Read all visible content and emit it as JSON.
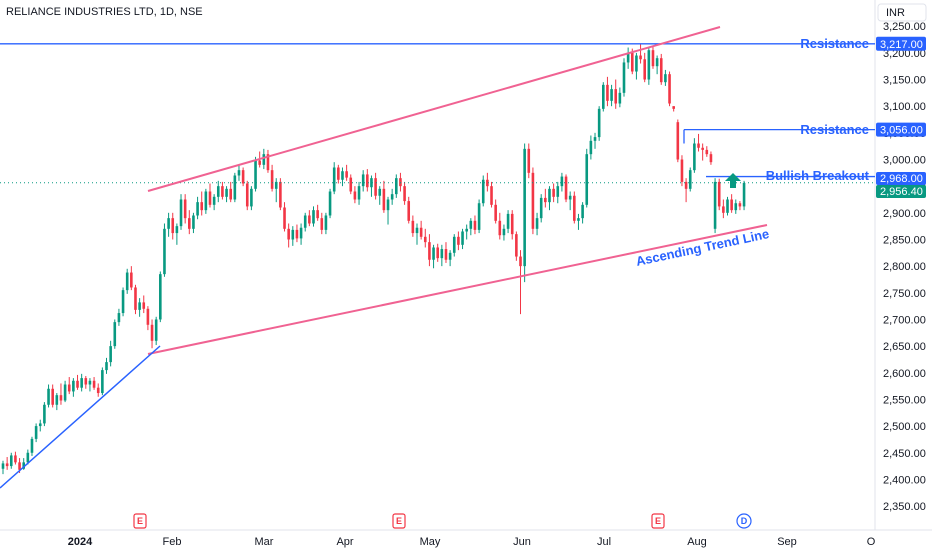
{
  "header": {
    "symbol_title": "RELIANCE INDUSTRIES LTD, 1D, NSE",
    "currency": "INR"
  },
  "colors": {
    "up": "#089981",
    "down": "#f23645",
    "channel": "#f06292",
    "blue": "#2962ff",
    "grid_text": "#131722"
  },
  "chart_data": {
    "type": "candlestick",
    "title": "RELIANCE INDUSTRIES LTD, 1D, NSE",
    "currency": "INR",
    "y_ticks": [
      2350,
      2400,
      2450,
      2500,
      2550,
      2600,
      2650,
      2700,
      2750,
      2800,
      2850,
      2900,
      2950,
      3000,
      3050,
      3100,
      3150,
      3200,
      3250
    ],
    "ylim": [
      2330,
      3270
    ],
    "x_labels": [
      "2024",
      "Feb",
      "Mar",
      "Apr",
      "May",
      "Jun",
      "Jul",
      "Aug",
      "Sep",
      "O"
    ],
    "candles": [
      [
        2420,
        2435,
        2410,
        2430
      ],
      [
        2430,
        2442,
        2418,
        2425
      ],
      [
        2425,
        2450,
        2420,
        2445
      ],
      [
        2445,
        2452,
        2428,
        2432
      ],
      [
        2432,
        2440,
        2412,
        2418
      ],
      [
        2420,
        2440,
        2418,
        2432
      ],
      [
        2432,
        2456,
        2428,
        2450
      ],
      [
        2450,
        2480,
        2444,
        2476
      ],
      [
        2476,
        2505,
        2470,
        2500
      ],
      [
        2500,
        2512,
        2490,
        2505
      ],
      [
        2505,
        2545,
        2500,
        2540
      ],
      [
        2540,
        2578,
        2535,
        2570
      ],
      [
        2570,
        2578,
        2535,
        2540
      ],
      [
        2540,
        2562,
        2530,
        2558
      ],
      [
        2558,
        2580,
        2540,
        2548
      ],
      [
        2548,
        2585,
        2545,
        2578
      ],
      [
        2578,
        2592,
        2560,
        2565
      ],
      [
        2565,
        2590,
        2555,
        2585
      ],
      [
        2585,
        2596,
        2568,
        2572
      ],
      [
        2572,
        2598,
        2565,
        2590
      ],
      [
        2590,
        2594,
        2570,
        2578
      ],
      [
        2578,
        2590,
        2565,
        2585
      ],
      [
        2585,
        2592,
        2568,
        2572
      ],
      [
        2572,
        2580,
        2555,
        2562
      ],
      [
        2562,
        2610,
        2558,
        2605
      ],
      [
        2605,
        2628,
        2598,
        2620
      ],
      [
        2620,
        2660,
        2612,
        2650
      ],
      [
        2650,
        2700,
        2645,
        2695
      ],
      [
        2695,
        2720,
        2688,
        2712
      ],
      [
        2712,
        2760,
        2706,
        2755
      ],
      [
        2755,
        2795,
        2748,
        2788
      ],
      [
        2788,
        2800,
        2755,
        2760
      ],
      [
        2760,
        2765,
        2710,
        2718
      ],
      [
        2718,
        2740,
        2705,
        2732
      ],
      [
        2732,
        2745,
        2712,
        2720
      ],
      [
        2720,
        2725,
        2680,
        2690
      ],
      [
        2690,
        2700,
        2646,
        2660
      ],
      [
        2660,
        2705,
        2652,
        2700
      ],
      [
        2700,
        2790,
        2695,
        2785
      ],
      [
        2785,
        2880,
        2780,
        2870
      ],
      [
        2870,
        2900,
        2855,
        2890
      ],
      [
        2890,
        2900,
        2850,
        2862
      ],
      [
        2862,
        2880,
        2840,
        2875
      ],
      [
        2875,
        2935,
        2868,
        2925
      ],
      [
        2925,
        2935,
        2880,
        2890
      ],
      [
        2890,
        2905,
        2860,
        2870
      ],
      [
        2870,
        2900,
        2862,
        2895
      ],
      [
        2895,
        2930,
        2888,
        2920
      ],
      [
        2920,
        2940,
        2895,
        2905
      ],
      [
        2905,
        2945,
        2898,
        2940
      ],
      [
        2940,
        2955,
        2910,
        2915
      ],
      [
        2915,
        2935,
        2905,
        2930
      ],
      [
        2930,
        2960,
        2920,
        2950
      ],
      [
        2950,
        2958,
        2925,
        2930
      ],
      [
        2930,
        2950,
        2920,
        2945
      ],
      [
        2945,
        2958,
        2920,
        2925
      ],
      [
        2925,
        2975,
        2920,
        2970
      ],
      [
        2970,
        2990,
        2960,
        2980
      ],
      [
        2980,
        2985,
        2950,
        2955
      ],
      [
        2955,
        2960,
        2905,
        2912
      ],
      [
        2912,
        2950,
        2905,
        2945
      ],
      [
        2945,
        3005,
        2940,
        2998
      ],
      [
        2998,
        3015,
        2985,
        2990
      ],
      [
        2990,
        3020,
        2982,
        3010
      ],
      [
        3010,
        3018,
        2975,
        2980
      ],
      [
        2980,
        2990,
        2940,
        2945
      ],
      [
        2945,
        2965,
        2920,
        2958
      ],
      [
        2958,
        2965,
        2905,
        2910
      ],
      [
        2910,
        2920,
        2865,
        2870
      ],
      [
        2870,
        2880,
        2835,
        2850
      ],
      [
        2850,
        2875,
        2838,
        2868
      ],
      [
        2868,
        2878,
        2845,
        2852
      ],
      [
        2852,
        2880,
        2840,
        2872
      ],
      [
        2872,
        2900,
        2865,
        2895
      ],
      [
        2895,
        2905,
        2875,
        2880
      ],
      [
        2880,
        2912,
        2874,
        2905
      ],
      [
        2905,
        2915,
        2885,
        2890
      ],
      [
        2890,
        2900,
        2860,
        2868
      ],
      [
        2868,
        2900,
        2860,
        2895
      ],
      [
        2895,
        2945,
        2890,
        2940
      ],
      [
        2940,
        2995,
        2935,
        2985
      ],
      [
        2985,
        2990,
        2955,
        2962
      ],
      [
        2962,
        2985,
        2950,
        2978
      ],
      [
        2978,
        2990,
        2960,
        2966
      ],
      [
        2966,
        2972,
        2935,
        2940
      ],
      [
        2940,
        2950,
        2918,
        2925
      ],
      [
        2925,
        2958,
        2915,
        2950
      ],
      [
        2950,
        2980,
        2940,
        2972
      ],
      [
        2972,
        2982,
        2940,
        2948
      ],
      [
        2948,
        2970,
        2930,
        2965
      ],
      [
        2965,
        2975,
        2925,
        2932
      ],
      [
        2932,
        2950,
        2915,
        2945
      ],
      [
        2945,
        2960,
        2900,
        2905
      ],
      [
        2905,
        2930,
        2878,
        2925
      ],
      [
        2925,
        2945,
        2915,
        2935
      ],
      [
        2935,
        2972,
        2928,
        2965
      ],
      [
        2965,
        2975,
        2940,
        2950
      ],
      [
        2950,
        2958,
        2915,
        2922
      ],
      [
        2922,
        2930,
        2880,
        2885
      ],
      [
        2885,
        2895,
        2855,
        2862
      ],
      [
        2862,
        2880,
        2840,
        2872
      ],
      [
        2872,
        2885,
        2850,
        2855
      ],
      [
        2855,
        2870,
        2835,
        2845
      ],
      [
        2845,
        2860,
        2800,
        2812
      ],
      [
        2812,
        2840,
        2796,
        2835
      ],
      [
        2835,
        2842,
        2808,
        2815
      ],
      [
        2815,
        2840,
        2800,
        2832
      ],
      [
        2832,
        2845,
        2806,
        2812
      ],
      [
        2812,
        2830,
        2800,
        2825
      ],
      [
        2825,
        2860,
        2818,
        2855
      ],
      [
        2855,
        2865,
        2830,
        2840
      ],
      [
        2840,
        2870,
        2832,
        2865
      ],
      [
        2865,
        2878,
        2850,
        2870
      ],
      [
        2870,
        2890,
        2858,
        2885
      ],
      [
        2885,
        2895,
        2860,
        2868
      ],
      [
        2868,
        2925,
        2862,
        2918
      ],
      [
        2918,
        2970,
        2912,
        2962
      ],
      [
        2962,
        2975,
        2940,
        2950
      ],
      [
        2950,
        2958,
        2910,
        2915
      ],
      [
        2915,
        2925,
        2880,
        2885
      ],
      [
        2885,
        2900,
        2850,
        2858
      ],
      [
        2858,
        2878,
        2848,
        2870
      ],
      [
        2870,
        2905,
        2862,
        2898
      ],
      [
        2898,
        2905,
        2850,
        2860
      ],
      [
        2860,
        2865,
        2810,
        2818
      ],
      [
        2818,
        2830,
        2710,
        2800
      ],
      [
        2800,
        3030,
        2770,
        3020
      ],
      [
        3020,
        3030,
        2965,
        2975
      ],
      [
        2975,
        2985,
        2860,
        2870
      ],
      [
        2870,
        2900,
        2858,
        2890
      ],
      [
        2890,
        2935,
        2882,
        2928
      ],
      [
        2928,
        2945,
        2910,
        2920
      ],
      [
        2920,
        2950,
        2905,
        2945
      ],
      [
        2945,
        2955,
        2920,
        2930
      ],
      [
        2930,
        2958,
        2918,
        2950
      ],
      [
        2950,
        2975,
        2940,
        2968
      ],
      [
        2968,
        2972,
        2920,
        2925
      ],
      [
        2925,
        2940,
        2905,
        2932
      ],
      [
        2932,
        2940,
        2880,
        2885
      ],
      [
        2885,
        2898,
        2868,
        2890
      ],
      [
        2890,
        2920,
        2880,
        2915
      ],
      [
        2915,
        3020,
        2910,
        3010
      ],
      [
        3010,
        3045,
        3000,
        3035
      ],
      [
        3035,
        3050,
        3020,
        3042
      ],
      [
        3042,
        3100,
        3035,
        3095
      ],
      [
        3095,
        3145,
        3090,
        3140
      ],
      [
        3140,
        3155,
        3100,
        3110
      ],
      [
        3110,
        3140,
        3100,
        3132
      ],
      [
        3132,
        3150,
        3095,
        3105
      ],
      [
        3105,
        3135,
        3098,
        3125
      ],
      [
        3125,
        3190,
        3118,
        3182
      ],
      [
        3182,
        3210,
        3170,
        3200
      ],
      [
        3200,
        3208,
        3160,
        3165
      ],
      [
        3165,
        3200,
        3150,
        3195
      ],
      [
        3195,
        3217,
        3180,
        3188
      ],
      [
        3188,
        3200,
        3145,
        3150
      ],
      [
        3150,
        3210,
        3140,
        3205
      ],
      [
        3205,
        3212,
        3170,
        3175
      ],
      [
        3175,
        3195,
        3160,
        3190
      ],
      [
        3190,
        3198,
        3140,
        3145
      ],
      [
        3145,
        3168,
        3138,
        3160
      ],
      [
        3160,
        3165,
        3100,
        3105
      ],
      [
        3100,
        3100,
        3090,
        3095
      ],
      [
        3070,
        3075,
        2995,
        3000
      ],
      [
        3000,
        3008,
        2950,
        2958
      ],
      [
        2958,
        2965,
        2920,
        2945
      ],
      [
        2945,
        2985,
        2940,
        2980
      ],
      [
        2980,
        3040,
        2975,
        3030
      ],
      [
        3030,
        3048,
        3015,
        3022
      ],
      [
        3022,
        3030,
        2998,
        3018
      ],
      [
        3018,
        3025,
        3005,
        3010
      ],
      [
        3010,
        3015,
        2990,
        2995
      ],
      [
        2870,
        2965,
        2862,
        2958
      ],
      [
        2958,
        2964,
        2905,
        2912
      ],
      [
        2912,
        2925,
        2890,
        2900
      ],
      [
        2900,
        2930,
        2895,
        2925
      ],
      [
        2925,
        2935,
        2900,
        2905
      ],
      [
        2905,
        2925,
        2898,
        2918
      ],
      [
        2918,
        2922,
        2905,
        2912
      ],
      [
        2912,
        2960,
        2905,
        2956
      ]
    ],
    "channel_upper": [
      [
        "Jan 24",
        2955
      ],
      [
        "Aug 27",
        3262
      ]
    ],
    "channel_lower": [
      [
        "Jan 24",
        2652
      ],
      [
        "Aug 27",
        2891
      ]
    ],
    "support_line": [
      [
        "Jan 1",
        2392
      ],
      [
        "Jan 25",
        2665
      ]
    ],
    "annotations": [
      {
        "label": "Resistance",
        "value": 3217,
        "tag": "3,217.00",
        "tag_color": "#2962ff"
      },
      {
        "label": "Resistance",
        "value": 3056,
        "tag": "3,056.00",
        "tag_color": "#2962ff"
      },
      {
        "label": "Bullish Breakout",
        "value": 2968,
        "tag": "2,968.00",
        "tag_color": "#2962ff"
      },
      {
        "label": "Ascending Trend Line"
      }
    ],
    "current_price": {
      "value": 2956.4,
      "tag": "2,956.40",
      "color": "#089981"
    },
    "events": [
      {
        "label": "E",
        "x_month": "Jan",
        "kind": "earnings"
      },
      {
        "label": "E",
        "x_month": "Apr",
        "kind": "earnings"
      },
      {
        "label": "E",
        "x_month": "Jul",
        "kind": "earnings"
      },
      {
        "label": "D",
        "x_month": "Aug",
        "kind": "dividend"
      }
    ],
    "grid": false,
    "legend": "none"
  }
}
